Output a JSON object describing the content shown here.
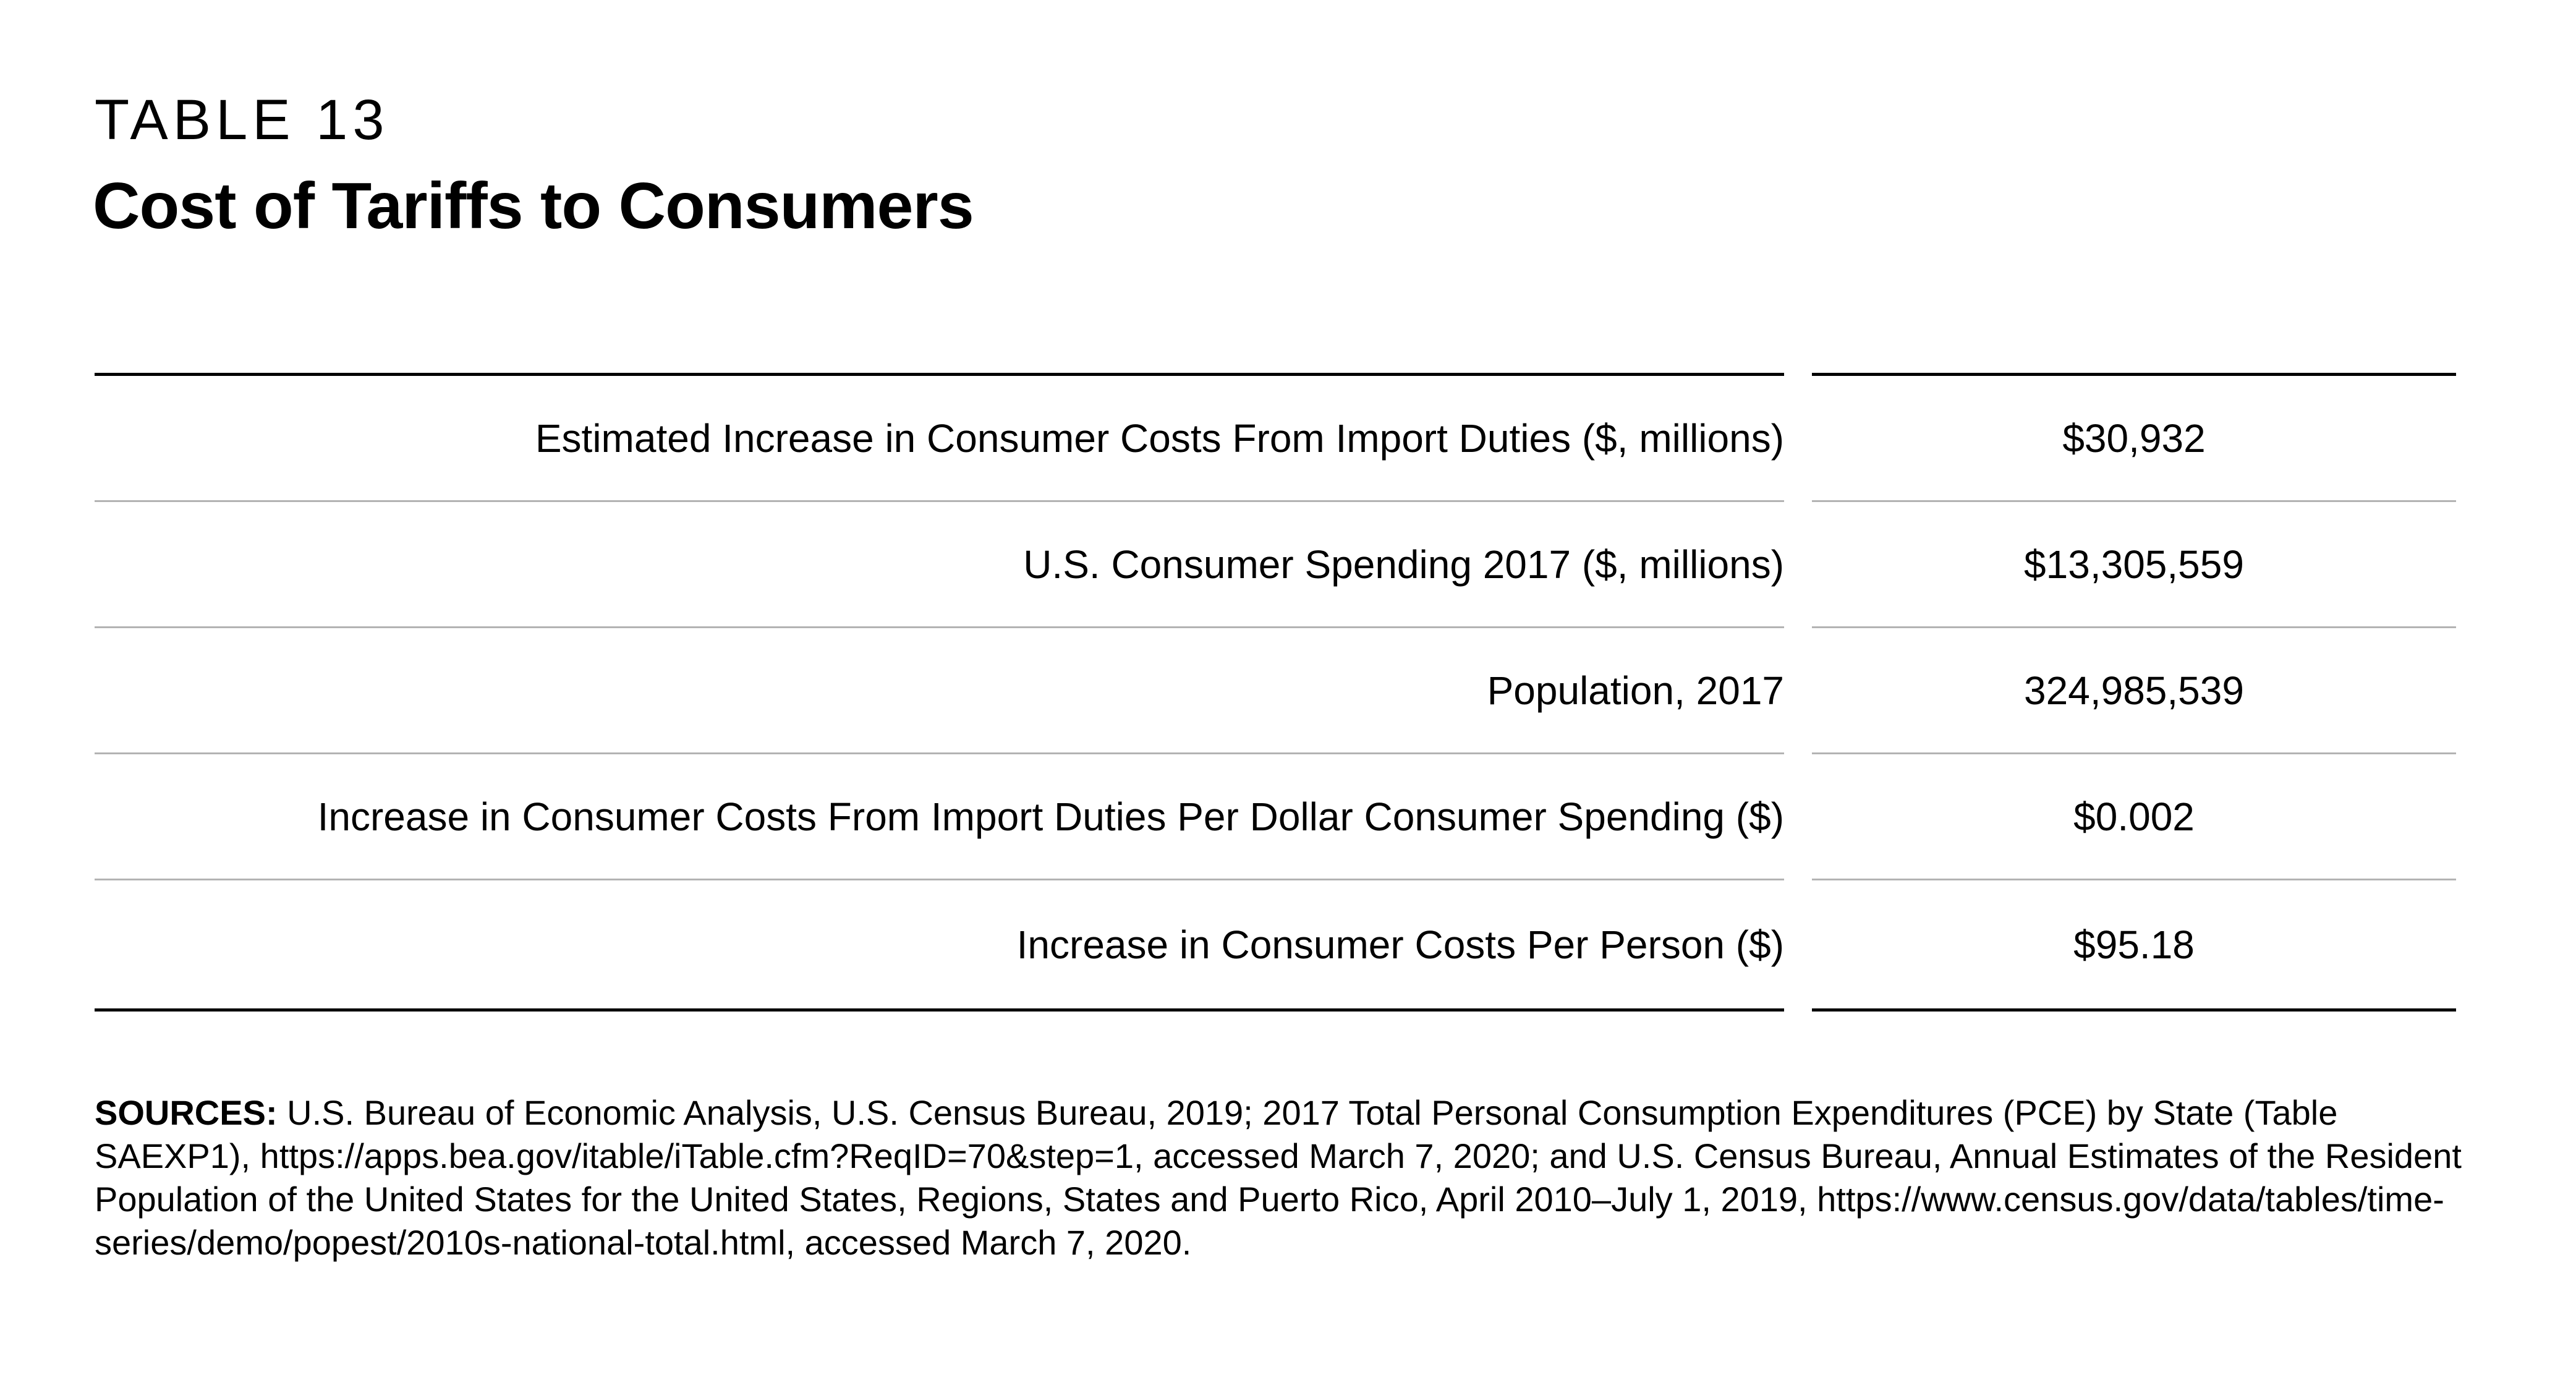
{
  "header": {
    "kicker": "TABLE 13",
    "title": "Cost of Tariffs to Consumers"
  },
  "table": {
    "rows": [
      {
        "label": "Estimated Increase in Consumer Costs From Import Duties ($, millions)",
        "value": "$30,932"
      },
      {
        "label": "U.S. Consumer Spending 2017 ($, millions)",
        "value": "$13,305,559"
      },
      {
        "label": "Population, 2017",
        "value": "324,985,539"
      },
      {
        "label": "Increase in Consumer Costs From Import Duties Per Dollar Consumer Spending ($)",
        "value": "$0.002"
      },
      {
        "label": "Increase in Consumer Costs Per Person ($)",
        "value": "$95.18"
      }
    ]
  },
  "sources": {
    "label": "SOURCES:",
    "text": " U.S. Bureau of Economic Analysis, U.S. Census Bureau, 2019; 2017 Total Personal Consumption Expenditures (PCE) by State (Table SAEXP1), https://apps.bea.gov/itable/iTable.cfm?ReqID=70&step=1, accessed March 7, 2020; and U.S. Census Bureau, Annual Estimates of the Resident Population of the United States for the United States, Regions, States and Puerto Rico, April 2010–July 1, 2019, https://www.census.gov/data/tables/time-series/demo/popest/2010s-national-total.html, accessed March 7, 2020."
  }
}
